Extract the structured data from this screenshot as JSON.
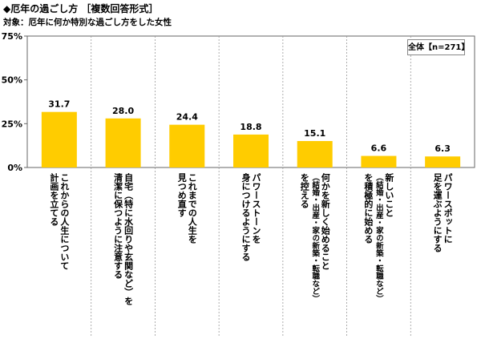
{
  "chart_data": {
    "type": "bar",
    "title": "◆厄年の過ごし方 ［複数回答形式］",
    "subtitle": "対象：厄年に何か特別な過ごし方をした女性",
    "sample": "全体【n=271】",
    "ylim": [
      0,
      75
    ],
    "yticks": [
      "0%",
      "25%",
      "50%",
      "75%"
    ],
    "bar_color": "#FFCC00",
    "categories": [
      [
        "これからの人生について",
        "計画を立てる"
      ],
      [
        "自宅（特に水回りや玄関など）を",
        "清潔に保つように注意する"
      ],
      [
        "これまでの人生を",
        "見つめ直す"
      ],
      [
        "パワーストーンを",
        "身につけるようにする"
      ],
      [
        "何かを新しく始めること",
        "（結婚・出産・家の新築・転職など）",
        "を控える"
      ],
      [
        "新しいこと",
        "（結婚・出産・家の新築・転職など）",
        "を積極的に始める"
      ],
      [
        "パワースポットに",
        "足を運ぶようにする"
      ]
    ],
    "values": [
      31.7,
      28.0,
      24.4,
      18.8,
      15.1,
      6.6,
      6.3
    ],
    "value_labels": [
      "31.7",
      "28.0",
      "24.4",
      "18.8",
      "15.1",
      "6.6",
      "6.3"
    ]
  }
}
